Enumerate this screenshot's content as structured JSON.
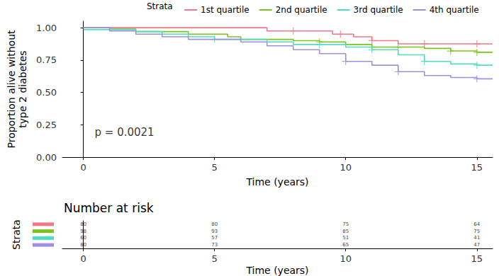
{
  "chart_data": {
    "type": "step",
    "legend_title": "Strata",
    "x_label": "Time (years)",
    "y_label": "Proportion alive without\ntype 2 diabetes",
    "xlim": [
      -0.8,
      15.6
    ],
    "xticks": [
      0,
      5,
      10,
      15
    ],
    "ylim": [
      0,
      1.05
    ],
    "yticks": [
      {
        "value": 0,
        "label": "0.00"
      },
      {
        "value": 0.25,
        "label": "0.25"
      },
      {
        "value": 0.5,
        "label": "0.50"
      },
      {
        "value": 0.75,
        "label": "0.75"
      },
      {
        "value": 1,
        "label": "1.00"
      }
    ],
    "grid": false,
    "legend": "top",
    "annotations": [
      {
        "text": "p = 0.0021",
        "x": 0.43,
        "y": 0.19
      }
    ],
    "series": [
      {
        "name": "1st quartile",
        "color": "#f0788a",
        "x": [
          0,
          7,
          9.5,
          10.3,
          11,
          12,
          15.6
        ],
        "values": [
          1,
          0.975,
          0.95,
          0.93,
          0.9,
          0.875,
          0.875
        ],
        "censored": [
          [
            8,
            0.975
          ],
          [
            9.8,
            0.95
          ],
          [
            11,
            0.9
          ],
          [
            13,
            0.875
          ],
          [
            15,
            0.875
          ]
        ]
      },
      {
        "name": "2nd quartile",
        "color": "#7cc31f",
        "x": [
          0,
          1,
          2,
          4,
          5.5,
          6,
          8,
          9,
          10,
          11,
          13,
          14,
          15,
          15.6
        ],
        "values": [
          1,
          0.99,
          0.97,
          0.95,
          0.93,
          0.91,
          0.9,
          0.89,
          0.87,
          0.85,
          0.84,
          0.82,
          0.81,
          0.81
        ],
        "censored": [
          [
            9,
            0.89
          ],
          [
            11,
            0.85
          ],
          [
            12,
            0.85
          ],
          [
            14,
            0.82
          ],
          [
            15,
            0.81
          ]
        ]
      },
      {
        "name": "3rd quartile",
        "color": "#4fdfbe",
        "x": [
          0,
          2,
          3,
          4,
          5,
          7,
          8,
          10,
          11,
          12,
          13,
          14,
          15,
          15.6
        ],
        "values": [
          0.985,
          0.97,
          0.95,
          0.93,
          0.91,
          0.89,
          0.87,
          0.85,
          0.83,
          0.79,
          0.74,
          0.72,
          0.71,
          0.71
        ],
        "censored": [
          [
            5,
            0.91
          ],
          [
            9,
            0.87
          ],
          [
            11,
            0.83
          ],
          [
            13,
            0.74
          ],
          [
            15,
            0.71
          ]
        ]
      },
      {
        "name": "4th quartile",
        "color": "#a08fe0",
        "x": [
          0,
          1,
          2,
          3,
          4,
          6,
          7,
          8,
          9,
          10,
          11,
          12,
          13,
          14,
          15,
          15.6
        ],
        "values": [
          1,
          0.975,
          0.95,
          0.93,
          0.91,
          0.89,
          0.86,
          0.83,
          0.8,
          0.74,
          0.71,
          0.66,
          0.63,
          0.615,
          0.605,
          0.605
        ],
        "censored": [
          [
            10,
            0.74
          ],
          [
            12,
            0.66
          ],
          [
            15,
            0.605
          ]
        ]
      }
    ],
    "risk_table": {
      "title": "Number at risk",
      "y_label": "Strata",
      "x_label": "Time (years)",
      "times": [
        0,
        5,
        10,
        15
      ],
      "counts": [
        [
          80,
          80,
          75,
          64
        ],
        [
          98,
          93,
          85,
          75
        ],
        [
          60,
          57,
          51,
          41
        ],
        [
          80,
          73,
          65,
          47
        ]
      ]
    }
  }
}
